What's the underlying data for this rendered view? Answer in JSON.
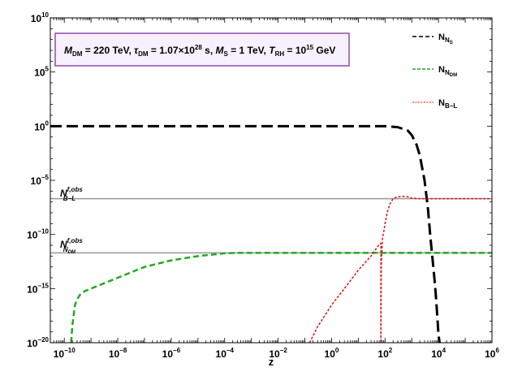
{
  "chart_data": {
    "type": "line",
    "xlabel": "z",
    "ylabel": "",
    "x_scale": "log",
    "y_scale": "log",
    "xlim": [
      3e-11,
      1000000.0
    ],
    "ylim": [
      1e-20,
      10000000000.0
    ],
    "grid": false,
    "legend_position": "top-right",
    "x_ticks": [
      {
        "value": 1e-10,
        "base": "10",
        "exp": "−10"
      },
      {
        "value": 1e-08,
        "base": "10",
        "exp": "−8"
      },
      {
        "value": 1e-06,
        "base": "10",
        "exp": "−6"
      },
      {
        "value": 0.0001,
        "base": "10",
        "exp": "−4"
      },
      {
        "value": 0.01,
        "base": "10",
        "exp": "−2"
      },
      {
        "value": 1,
        "base": "10",
        "exp": "0"
      },
      {
        "value": 100.0,
        "base": "10",
        "exp": "2"
      },
      {
        "value": 10000.0,
        "base": "10",
        "exp": "4"
      },
      {
        "value": 1000000.0,
        "base": "10",
        "exp": "6"
      }
    ],
    "y_ticks": [
      {
        "value": 1e-20,
        "base": "10",
        "exp": "−20"
      },
      {
        "value": 1e-15,
        "base": "10",
        "exp": "−15"
      },
      {
        "value": 1e-10,
        "base": "10",
        "exp": "−10"
      },
      {
        "value": 1e-05,
        "base": "10",
        "exp": "−5"
      },
      {
        "value": 1,
        "base": "10",
        "exp": "0"
      },
      {
        "value": 100000.0,
        "base": "10",
        "exp": "5"
      },
      {
        "value": 10000000000.0,
        "base": "10",
        "exp": "10"
      }
    ],
    "parameters": {
      "m_dm_label": "M",
      "m_dm_sub": "DM",
      "m_dm_value": " = 220 TeV,  ",
      "tau_label": "τ",
      "tau_sub": "DM",
      "tau_value": " = 1.07×10",
      "tau_exp": "28",
      "tau_unit": " s,  ",
      "ms_label": "M",
      "ms_sub": "S",
      "ms_value": " = 1 TeV,  ",
      "trh_label": "T",
      "trh_sub": "RH",
      "trh_value": " = 10",
      "trh_exp": "15",
      "trh_unit": " GeV"
    },
    "reference_lines": [
      {
        "label_main": "N",
        "label_sup": "f,obs",
        "label_sub": "B−L",
        "label_subsub": "",
        "y": 2e-07
      },
      {
        "label_main": "N",
        "label_sup": "f,obs",
        "label_sub": "N",
        "label_subsub": "DM",
        "y": 2e-12
      }
    ],
    "series": [
      {
        "name": "N",
        "name_sub": "N",
        "name_subsub": "S",
        "color": "#000000",
        "dash": "14,6",
        "width": 3,
        "x": [
          3e-11,
          1e-10,
          1e-08,
          1e-06,
          0.0001,
          0.01,
          1,
          10,
          100,
          300,
          700,
          1000,
          1500,
          2000,
          3000,
          4000,
          5000,
          6000,
          7000,
          8000,
          9000,
          10000,
          11000
        ],
        "y": [
          1,
          1,
          1,
          1,
          1,
          1,
          1,
          1,
          1,
          0.8,
          0.4,
          0.15,
          0.02,
          0.002,
          1e-05,
          3e-08,
          5e-11,
          5e-13,
          1e-14,
          2e-16,
          3e-18,
          5e-20,
          1e-20
        ]
      },
      {
        "name": "N",
        "name_sub": "N",
        "name_subsub": "DM",
        "color": "#22aa22",
        "dash": "7,4",
        "width": 2.5,
        "x": [
          1.8e-10,
          2e-10,
          2.5e-10,
          3e-10,
          4e-10,
          6e-10,
          1e-09,
          2e-09,
          5e-09,
          1e-08,
          1e-07,
          1e-06,
          1e-05,
          0.0001,
          0.0003,
          0.001,
          1,
          1000.0,
          1000000.0
        ],
        "y": [
          1e-20,
          4e-19,
          3e-17,
          1e-16,
          3e-16,
          6e-16,
          1e-15,
          2e-15,
          5e-15,
          1e-14,
          1e-13,
          4e-13,
          1e-12,
          1.8e-12,
          2e-12,
          2e-12,
          2e-12,
          2e-12,
          2e-12
        ]
      },
      {
        "name": "N",
        "name_sub": "B−L",
        "name_subsub": "",
        "color": "#dd1111",
        "dash": "3,2",
        "width": 1.5,
        "x": [
          0.15,
          0.3,
          1,
          3,
          10,
          30,
          60,
          70,
          70.001,
          72,
          75,
          80,
          90,
          100,
          120,
          150,
          200,
          300,
          500,
          800,
          1000,
          2000,
          5000,
          10000.0,
          100000.0,
          1000000.0
        ],
        "y": [
          1e-20,
          3e-19,
          3e-17,
          1e-15,
          5e-14,
          1e-12,
          1.2e-11,
          1.5e-11,
          1e-20,
          1e-13,
          1e-12,
          4e-11,
          2e-10,
          1e-09,
          1e-08,
          6e-08,
          2e-07,
          3e-07,
          3.2e-07,
          2.8e-07,
          2.2e-07,
          2e-07,
          2e-07,
          2e-07,
          2e-07,
          2e-07
        ]
      }
    ]
  }
}
